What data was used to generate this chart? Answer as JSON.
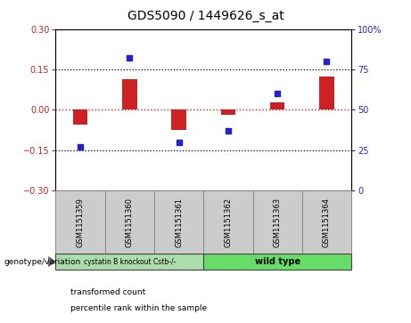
{
  "title": "GDS5090 / 1449626_s_at",
  "samples": [
    "GSM1151359",
    "GSM1151360",
    "GSM1151361",
    "GSM1151362",
    "GSM1151363",
    "GSM1151364"
  ],
  "transformed_counts": [
    -0.055,
    0.115,
    -0.075,
    -0.018,
    0.028,
    0.125
  ],
  "percentile_ranks": [
    27,
    82,
    30,
    37,
    60,
    80
  ],
  "ylim_left": [
    -0.3,
    0.3
  ],
  "ylim_right": [
    0,
    100
  ],
  "yticks_left": [
    -0.3,
    -0.15,
    0,
    0.15,
    0.3
  ],
  "yticks_right": [
    0,
    25,
    50,
    75,
    100
  ],
  "hlines": [
    0.15,
    -0.15
  ],
  "bar_color": "#cc2222",
  "dot_color": "#2222cc",
  "zero_line_color": "#cc2222",
  "group1_label": "cystatin B knockout Cstb-/-",
  "group2_label": "wild type",
  "group1_indices": [
    0,
    1,
    2
  ],
  "group2_indices": [
    3,
    4,
    5
  ],
  "group1_color": "#aaddaa",
  "group2_color": "#66dd66",
  "genotype_label": "genotype/variation",
  "legend_bar_label": "transformed count",
  "legend_dot_label": "percentile rank within the sample",
  "title_fontsize": 10,
  "tick_fontsize": 7,
  "label_fontsize": 7,
  "sample_fontsize": 6,
  "bar_width": 0.3
}
